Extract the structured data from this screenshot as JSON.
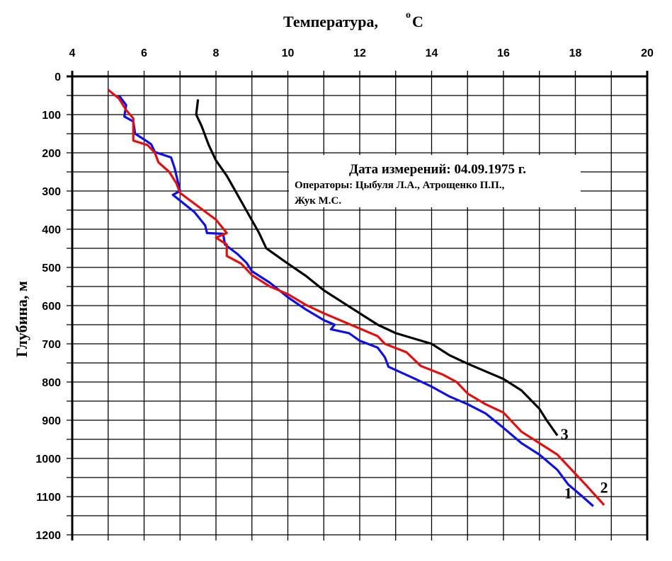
{
  "chart_data": {
    "type": "line",
    "title": "Температура,",
    "title_unit": "°C",
    "title_unit_sup": "o",
    "title_unit_letter": "C",
    "xlabel": "Температура, °C",
    "ylabel": "Глубина,  м",
    "xlim": [
      4,
      20
    ],
    "ylim": [
      1200,
      0
    ],
    "x_ticks": [
      4,
      6,
      8,
      10,
      12,
      14,
      16,
      18,
      20
    ],
    "y_ticks": [
      0,
      100,
      200,
      300,
      400,
      500,
      600,
      700,
      800,
      900,
      1000,
      1100,
      1200
    ],
    "grid": true,
    "info_box": {
      "line1": "Дата измерений: 04.09.1975 г.",
      "line2": "Операторы: Цыбуля Л.А., Атрощенко П.П.,",
      "line3": "Жук М.С."
    },
    "series": [
      {
        "name": "1",
        "color": "#1010e0",
        "label_at": [
          17.8,
          1090
        ],
        "points": [
          [
            5.3,
            50
          ],
          [
            5.5,
            75
          ],
          [
            5.45,
            105
          ],
          [
            5.7,
            118
          ],
          [
            5.75,
            150
          ],
          [
            6.0,
            165
          ],
          [
            6.2,
            178
          ],
          [
            6.3,
            198
          ],
          [
            6.75,
            212
          ],
          [
            6.85,
            240
          ],
          [
            7.0,
            300
          ],
          [
            6.8,
            310
          ],
          [
            7.0,
            325
          ],
          [
            7.4,
            355
          ],
          [
            7.7,
            390
          ],
          [
            7.75,
            410
          ],
          [
            8.2,
            412
          ],
          [
            8.25,
            440
          ],
          [
            8.6,
            465
          ],
          [
            8.85,
            488
          ],
          [
            9.0,
            510
          ],
          [
            9.5,
            540
          ],
          [
            10.0,
            578
          ],
          [
            10.5,
            610
          ],
          [
            11.0,
            638
          ],
          [
            11.3,
            650
          ],
          [
            11.2,
            662
          ],
          [
            11.7,
            672
          ],
          [
            12.0,
            692
          ],
          [
            12.5,
            710
          ],
          [
            12.7,
            735
          ],
          [
            12.8,
            760
          ],
          [
            13.5,
            790
          ],
          [
            14.0,
            812
          ],
          [
            14.5,
            838
          ],
          [
            15.0,
            858
          ],
          [
            15.5,
            882
          ],
          [
            16.0,
            920
          ],
          [
            16.5,
            960
          ],
          [
            17.0,
            990
          ],
          [
            17.5,
            1030
          ],
          [
            17.8,
            1068
          ],
          [
            18.2,
            1100
          ],
          [
            18.5,
            1125
          ]
        ]
      },
      {
        "name": "2",
        "color": "#e01010",
        "label_at": [
          18.8,
          1075
        ],
        "points": [
          [
            5.0,
            35
          ],
          [
            5.3,
            58
          ],
          [
            5.5,
            88
          ],
          [
            5.7,
            110
          ],
          [
            5.7,
            168
          ],
          [
            6.1,
            180
          ],
          [
            6.3,
            200
          ],
          [
            6.4,
            225
          ],
          [
            6.7,
            250
          ],
          [
            6.9,
            280
          ],
          [
            7.0,
            305
          ],
          [
            7.5,
            340
          ],
          [
            8.0,
            375
          ],
          [
            8.3,
            410
          ],
          [
            8.0,
            422
          ],
          [
            8.3,
            440
          ],
          [
            8.3,
            470
          ],
          [
            8.7,
            490
          ],
          [
            9.0,
            520
          ],
          [
            9.5,
            550
          ],
          [
            10.0,
            570
          ],
          [
            10.5,
            598
          ],
          [
            11.0,
            620
          ],
          [
            11.5,
            640
          ],
          [
            12.0,
            660
          ],
          [
            12.5,
            680
          ],
          [
            12.7,
            700
          ],
          [
            13.3,
            722
          ],
          [
            13.7,
            758
          ],
          [
            14.3,
            780
          ],
          [
            14.7,
            800
          ],
          [
            15.0,
            830
          ],
          [
            15.5,
            858
          ],
          [
            16.0,
            880
          ],
          [
            16.5,
            930
          ],
          [
            17.0,
            960
          ],
          [
            17.5,
            990
          ],
          [
            18.0,
            1040
          ],
          [
            18.3,
            1070
          ],
          [
            18.8,
            1122
          ]
        ]
      },
      {
        "name": "3",
        "color": "#000000",
        "label_at": [
          17.7,
          935
        ],
        "points": [
          [
            7.5,
            60
          ],
          [
            7.45,
            100
          ],
          [
            7.6,
            130
          ],
          [
            7.8,
            180
          ],
          [
            8.0,
            220
          ],
          [
            8.3,
            260
          ],
          [
            8.6,
            310
          ],
          [
            8.9,
            360
          ],
          [
            9.2,
            410
          ],
          [
            9.4,
            450
          ],
          [
            10.0,
            490
          ],
          [
            10.5,
            522
          ],
          [
            11.0,
            560
          ],
          [
            12.0,
            620
          ],
          [
            12.5,
            650
          ],
          [
            13.0,
            672
          ],
          [
            14.0,
            700
          ],
          [
            14.5,
            730
          ],
          [
            15.0,
            752
          ],
          [
            16.0,
            792
          ],
          [
            16.5,
            822
          ],
          [
            17.0,
            870
          ],
          [
            17.2,
            900
          ],
          [
            17.5,
            940
          ]
        ]
      }
    ]
  }
}
